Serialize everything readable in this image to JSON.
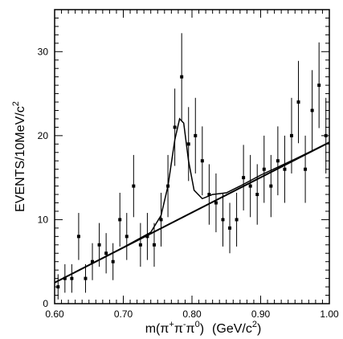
{
  "chart_data": {
    "type": "scatter",
    "title": "",
    "xlabel": {
      "m": "m(",
      "pi1": "π",
      "plus": "+",
      "pi2": "π",
      "minus": "-",
      "pi3": "π",
      "zero": "0",
      "close": ")",
      "units_open": "(GeV/c",
      "units_exp": "2",
      "units_close": ")"
    },
    "ylabel": {
      "main": "EVENTS/10MeV/c",
      "exp": "2"
    },
    "xlim": [
      0.6,
      1.0
    ],
    "ylim": [
      0,
      35
    ],
    "x_ticks": [
      {
        "value": 0.6,
        "label": "0.60"
      },
      {
        "value": 0.7,
        "label": "0.70"
      },
      {
        "value": 0.8,
        "label": "0.80"
      },
      {
        "value": 0.9,
        "label": "0.90"
      },
      {
        "value": 1.0,
        "label": "1.00"
      }
    ],
    "y_ticks": [
      {
        "value": 0,
        "label": "0"
      },
      {
        "value": 10,
        "label": "10"
      },
      {
        "value": 20,
        "label": "20"
      },
      {
        "value": 30,
        "label": "30"
      }
    ],
    "x_minor_step": 0.01,
    "y_minor_step": 1,
    "grid": false,
    "points": [
      {
        "x": 0.605,
        "y": 2,
        "err": 1.5
      },
      {
        "x": 0.615,
        "y": 3,
        "err": 1.7
      },
      {
        "x": 0.625,
        "y": 3,
        "err": 1.7
      },
      {
        "x": 0.635,
        "y": 8,
        "err": 2.8
      },
      {
        "x": 0.645,
        "y": 3,
        "err": 1.7
      },
      {
        "x": 0.655,
        "y": 5,
        "err": 2.2
      },
      {
        "x": 0.665,
        "y": 7,
        "err": 2.6
      },
      {
        "x": 0.675,
        "y": 6,
        "err": 2.4
      },
      {
        "x": 0.685,
        "y": 5,
        "err": 2.2
      },
      {
        "x": 0.695,
        "y": 10,
        "err": 3.2
      },
      {
        "x": 0.705,
        "y": 8,
        "err": 2.8
      },
      {
        "x": 0.715,
        "y": 14,
        "err": 3.7
      },
      {
        "x": 0.725,
        "y": 7,
        "err": 2.6
      },
      {
        "x": 0.735,
        "y": 8,
        "err": 2.8
      },
      {
        "x": 0.745,
        "y": 7,
        "err": 2.6
      },
      {
        "x": 0.755,
        "y": 10,
        "err": 3.2
      },
      {
        "x": 0.765,
        "y": 14,
        "err": 3.7
      },
      {
        "x": 0.775,
        "y": 21,
        "err": 4.6
      },
      {
        "x": 0.785,
        "y": 27,
        "err": 5.2
      },
      {
        "x": 0.795,
        "y": 19,
        "err": 4.4
      },
      {
        "x": 0.805,
        "y": 20,
        "err": 4.5
      },
      {
        "x": 0.815,
        "y": 17,
        "err": 4.1
      },
      {
        "x": 0.825,
        "y": 13,
        "err": 3.6
      },
      {
        "x": 0.835,
        "y": 12,
        "err": 3.5
      },
      {
        "x": 0.845,
        "y": 10,
        "err": 3.2
      },
      {
        "x": 0.855,
        "y": 9,
        "err": 3.0
      },
      {
        "x": 0.865,
        "y": 10,
        "err": 3.2
      },
      {
        "x": 0.875,
        "y": 15,
        "err": 3.9
      },
      {
        "x": 0.885,
        "y": 14,
        "err": 3.7
      },
      {
        "x": 0.895,
        "y": 13,
        "err": 3.6
      },
      {
        "x": 0.905,
        "y": 16,
        "err": 4.0
      },
      {
        "x": 0.915,
        "y": 14,
        "err": 3.7
      },
      {
        "x": 0.925,
        "y": 17,
        "err": 4.1
      },
      {
        "x": 0.935,
        "y": 16,
        "err": 4.0
      },
      {
        "x": 0.945,
        "y": 20,
        "err": 4.5
      },
      {
        "x": 0.955,
        "y": 24,
        "err": 4.9
      },
      {
        "x": 0.965,
        "y": 16,
        "err": 4.0
      },
      {
        "x": 0.975,
        "y": 23,
        "err": 4.8
      },
      {
        "x": 0.985,
        "y": 26,
        "err": 5.1
      },
      {
        "x": 0.995,
        "y": 20,
        "err": 4.5
      }
    ],
    "background_line": [
      [
        0.6,
        2.5
      ],
      [
        1.0,
        19.2
      ]
    ],
    "fit_curve": [
      [
        0.6,
        2.5
      ],
      [
        0.7,
        6.7
      ],
      [
        0.74,
        8.5
      ],
      [
        0.755,
        10.5
      ],
      [
        0.765,
        14.0
      ],
      [
        0.775,
        19.5
      ],
      [
        0.782,
        22.0
      ],
      [
        0.788,
        21.5
      ],
      [
        0.795,
        17.0
      ],
      [
        0.803,
        13.5
      ],
      [
        0.815,
        12.5
      ],
      [
        0.83,
        13.0
      ],
      [
        0.85,
        13.2
      ],
      [
        0.87,
        14.0
      ],
      [
        0.9,
        15.3
      ],
      [
        0.95,
        17.2
      ],
      [
        1.0,
        19.2
      ]
    ]
  }
}
